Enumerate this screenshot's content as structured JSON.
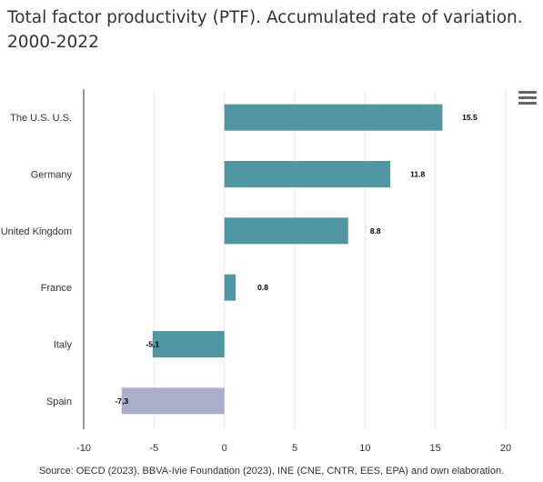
{
  "title": "Total factor productivity (PTF). Accumulated rate of variation. 2000-2022",
  "source": "Source: OECD (2023), BBVA-Ivie Foundation (2023), INE (CNE, CNTR, EES, EPA) and own elaboration.",
  "menu_icon": "hamburger-menu-icon",
  "chart_data": {
    "type": "bar",
    "orientation": "horizontal",
    "categories": [
      "The U.S. U.S.",
      "Germany",
      "United Kingdom",
      "France",
      "Italy",
      "Spain"
    ],
    "values": [
      15.5,
      11.8,
      8.8,
      0.8,
      -5.1,
      -7.3
    ],
    "data_labels": [
      "15.5",
      "11.8",
      "8.8",
      "0.8",
      "-5,1",
      "-7,3"
    ],
    "xlim": [
      -10,
      20
    ],
    "xticks": [
      -10,
      -5,
      0,
      5,
      10,
      15,
      20
    ],
    "grid": true,
    "colors": {
      "default": "#5096a3",
      "highlight": "#aaaec8"
    },
    "highlight_category": "Spain"
  }
}
